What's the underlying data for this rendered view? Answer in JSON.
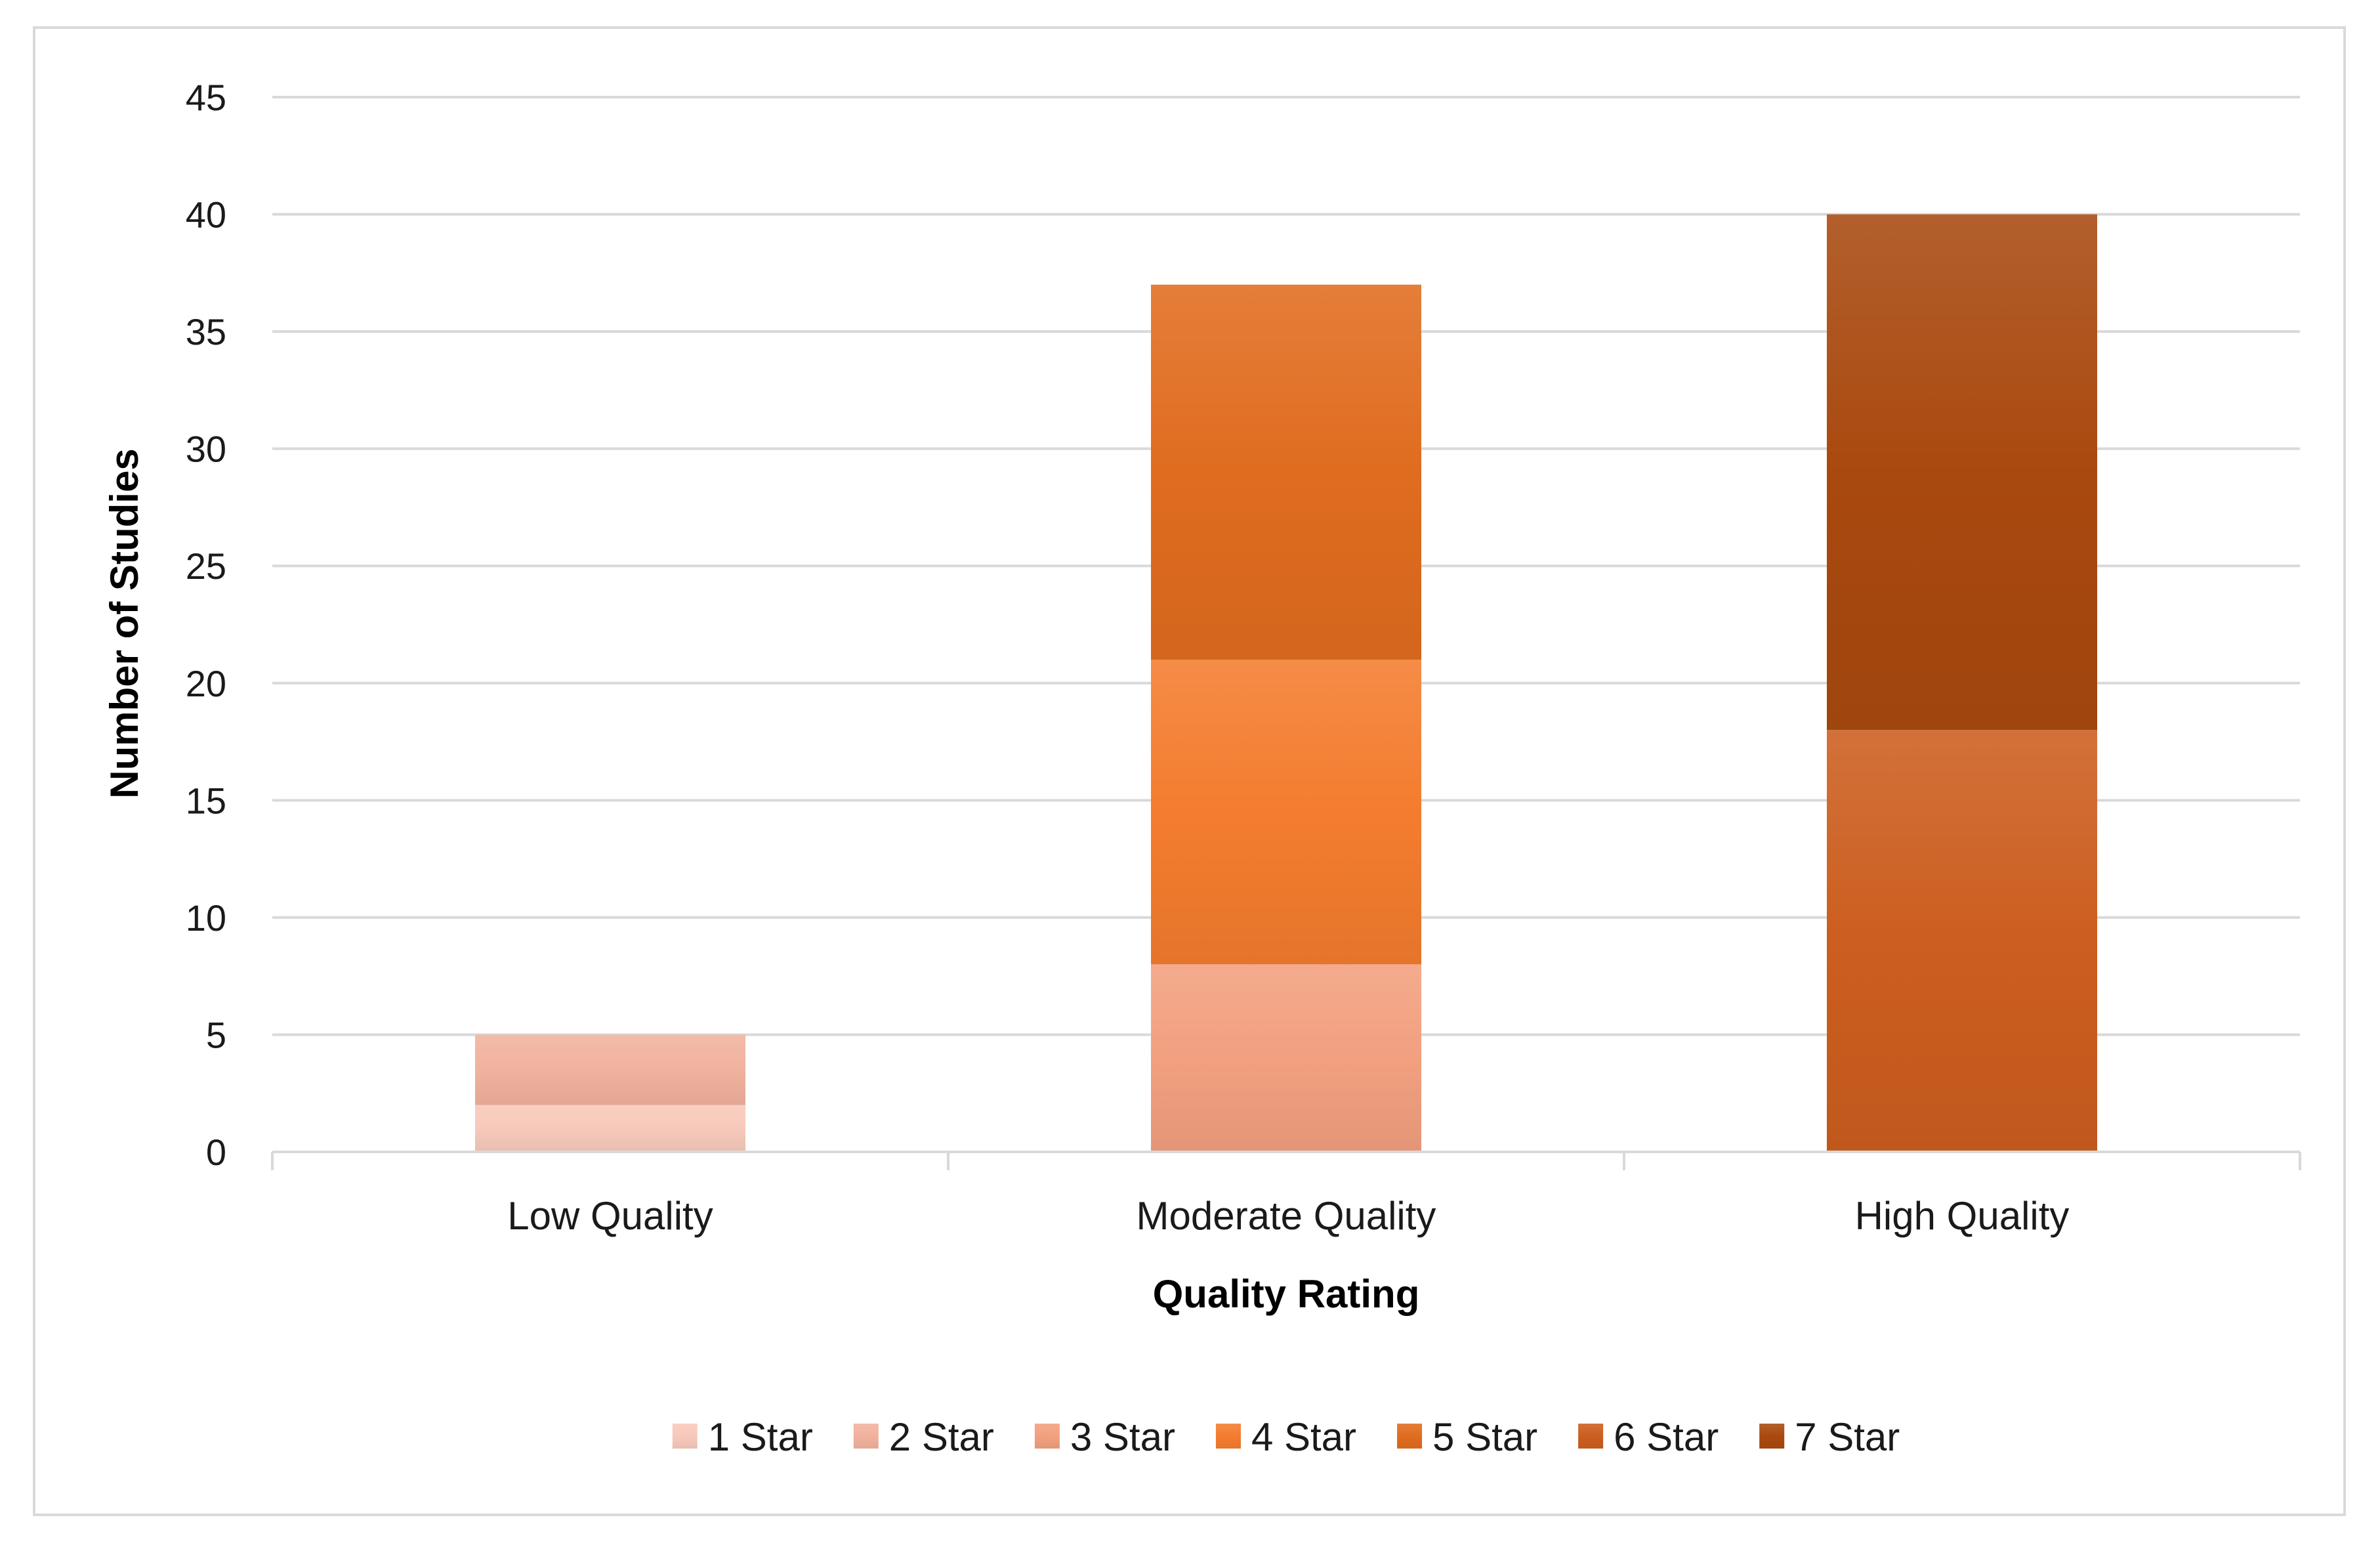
{
  "chart_data": {
    "type": "bar",
    "stacked": true,
    "title": "",
    "xlabel": "Quality Rating",
    "ylabel": "Number of Studies",
    "categories": [
      "Low Quality",
      "Moderate Quality",
      "High Quality"
    ],
    "ylim": [
      0,
      45
    ],
    "yticks": [
      0,
      5,
      10,
      15,
      20,
      25,
      30,
      35,
      40,
      45
    ],
    "grid": true,
    "legend_position": "bottom",
    "series": [
      {
        "name": "1 Star",
        "values": [
          2,
          0,
          0
        ],
        "color": "#f7c9bb"
      },
      {
        "name": "2 Star",
        "values": [
          3,
          0,
          0
        ],
        "color": "#f1b29d"
      },
      {
        "name": "3 Star",
        "values": [
          0,
          8,
          0
        ],
        "color": "#f2a07f"
      },
      {
        "name": "4 Star",
        "values": [
          0,
          13,
          0
        ],
        "color": "#f47c2e"
      },
      {
        "name": "5 Star",
        "values": [
          0,
          16,
          0
        ],
        "color": "#e06c1f"
      },
      {
        "name": "6 Star",
        "values": [
          0,
          0,
          18
        ],
        "color": "#cc5e1f"
      },
      {
        "name": "7 Star",
        "values": [
          0,
          0,
          22
        ],
        "color": "#a9490f"
      }
    ]
  }
}
